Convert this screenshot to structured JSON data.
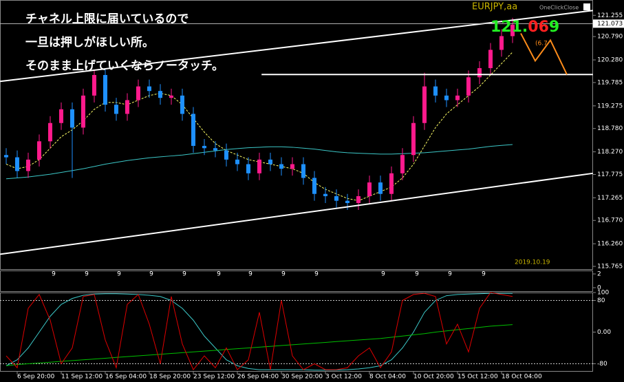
{
  "chart_data": [
    {
      "type": "candlestick",
      "title": "EURJPY,aa",
      "button": "OneClickClose",
      "date_label": "2019.10.19",
      "annotations": [
        "チャネル上限に届いているので",
        "一旦は押しがほしい所。",
        "そのまま上げていくならノータッチ。"
      ],
      "price_display": [
        {
          "text": "121.",
          "color": "#22ee22"
        },
        {
          "text": "06",
          "color": "#ff2020"
        },
        {
          "text": "9",
          "color": "#22ee22"
        }
      ],
      "projection_label": "(6.7",
      "categories": [
        null,
        "6 Sep 20:00",
        null,
        null,
        null,
        "11 Sep 12:00",
        null,
        null,
        null,
        "16 Sep 04:00",
        null,
        null,
        null,
        "18 Sep 20:00",
        null,
        null,
        null,
        "23 Sep 12:00",
        null,
        null,
        null,
        "26 Sep 04:00",
        null,
        null,
        null,
        "30 Sep 20:00",
        null,
        null,
        null,
        "3 Oct 12:00",
        null,
        null,
        null,
        "8 Oct 04:00",
        null,
        null,
        null,
        "10 Oct 20:00",
        null,
        null,
        null,
        "15 Oct 12:00",
        null,
        null,
        null,
        "18 Oct 04:00",
        null
      ],
      "open": [
        118.2,
        118.15,
        117.85,
        118.1,
        118.5,
        118.9,
        119.2,
        118.8,
        119.5,
        119.95,
        119.3,
        119.1,
        119.4,
        119.7,
        119.6,
        119.45,
        119.5,
        119.1,
        118.4,
        118.35,
        118.3,
        118.1,
        118.0,
        117.8,
        118.1,
        118.0,
        117.9,
        118.0,
        117.7,
        117.35,
        117.3,
        117.2,
        117.15,
        117.3,
        117.6,
        117.35,
        117.8,
        118.2,
        118.9,
        119.7,
        119.5,
        119.4,
        119.5,
        119.9,
        120.1,
        120.5,
        120.8
      ],
      "high": [
        118.35,
        118.3,
        118.25,
        118.65,
        119.05,
        119.35,
        119.35,
        119.65,
        120.05,
        120.1,
        119.45,
        119.55,
        119.85,
        119.85,
        119.75,
        119.65,
        119.65,
        119.25,
        118.55,
        118.5,
        118.45,
        118.25,
        118.15,
        118.25,
        118.25,
        118.15,
        118.15,
        118.15,
        117.85,
        117.5,
        117.45,
        117.35,
        117.45,
        117.75,
        117.75,
        117.95,
        118.35,
        119.05,
        120.0,
        119.85,
        119.65,
        119.65,
        120.05,
        120.25,
        120.65,
        120.95,
        121.2
      ],
      "low": [
        118.0,
        117.7,
        117.7,
        117.95,
        118.35,
        118.75,
        117.7,
        118.65,
        119.35,
        119.15,
        118.95,
        118.95,
        119.25,
        119.45,
        119.3,
        119.3,
        118.95,
        118.25,
        118.2,
        118.15,
        117.95,
        117.85,
        117.65,
        117.65,
        117.85,
        117.75,
        117.75,
        117.55,
        117.2,
        117.15,
        117.05,
        117.0,
        117.0,
        117.15,
        117.2,
        117.2,
        117.65,
        118.05,
        118.75,
        119.35,
        119.25,
        119.25,
        119.35,
        119.75,
        119.95,
        120.35,
        120.65
      ],
      "close": [
        118.15,
        117.85,
        118.1,
        118.5,
        118.9,
        119.2,
        118.8,
        119.5,
        119.95,
        119.3,
        119.1,
        119.4,
        119.7,
        119.6,
        119.45,
        119.5,
        119.1,
        118.4,
        118.35,
        118.3,
        118.1,
        118.0,
        117.8,
        118.1,
        118.0,
        117.9,
        118.0,
        117.7,
        117.35,
        117.3,
        117.2,
        117.15,
        117.3,
        117.6,
        117.35,
        117.8,
        118.2,
        118.9,
        119.7,
        119.5,
        119.4,
        119.5,
        119.9,
        120.1,
        120.5,
        120.8,
        121.05
      ],
      "up_color": "#ff1a8c",
      "down_color": "#1e90ff",
      "series": [
        {
          "color": "#ffff66",
          "dashed": true,
          "values": [
            118.0,
            117.9,
            117.95,
            118.1,
            118.35,
            118.6,
            118.75,
            118.95,
            119.2,
            119.35,
            119.35,
            119.3,
            119.4,
            119.5,
            119.55,
            119.5,
            119.3,
            119.0,
            118.7,
            118.45,
            118.3,
            118.2,
            118.1,
            118.05,
            118.0,
            117.95,
            117.9,
            117.8,
            117.6,
            117.45,
            117.35,
            117.25,
            117.2,
            117.3,
            117.4,
            117.5,
            117.7,
            118.0,
            118.4,
            118.8,
            119.1,
            119.3,
            119.5,
            119.7,
            119.95,
            120.2,
            120.45
          ]
        },
        {
          "color": "#3cc8c8",
          "dashed": false,
          "values": [
            117.68,
            117.7,
            117.72,
            117.75,
            117.78,
            117.82,
            117.86,
            117.9,
            117.95,
            118.0,
            118.04,
            118.08,
            118.11,
            118.14,
            118.16,
            118.18,
            118.2,
            118.23,
            118.26,
            118.29,
            118.32,
            118.34,
            118.36,
            118.37,
            118.38,
            118.38,
            118.37,
            118.35,
            118.33,
            118.3,
            118.27,
            118.25,
            118.24,
            118.23,
            118.22,
            118.22,
            118.23,
            118.24,
            118.25,
            118.27,
            118.29,
            118.31,
            118.33,
            118.36,
            118.39,
            118.41,
            118.43
          ]
        }
      ],
      "trendlines": [
        {
          "color": "#ffffff",
          "points": [
            [
              -0.56,
              116.03
            ],
            [
              53.3,
              117.8
            ]
          ]
        },
        {
          "color": "#ffffff",
          "points": [
            [
              -0.56,
              119.81
            ],
            [
              53.3,
              121.36
            ]
          ]
        },
        {
          "color": "#ffffff",
          "points": [
            [
              23.2,
              119.96
            ],
            [
              53.3,
              119.96
            ]
          ]
        },
        {
          "color": "#ff8c1a",
          "points": [
            [
              46.75,
              120.86
            ],
            [
              48.06,
              120.26
            ],
            [
              49.44,
              120.71
            ],
            [
              50.94,
              119.96
            ]
          ]
        }
      ],
      "current_price": 121.073,
      "ylim": [
        115.69,
        121.59
      ],
      "yticks": [
        121.255,
        {
          "value": 120.79,
          "label": "120.790"
        },
        {
          "value": 120.28,
          "label": "120.280"
        },
        119.785,
        119.275,
        {
          "value": 118.78,
          "label": "118.780"
        },
        {
          "value": 118.27,
          "label": "118.270"
        },
        117.775,
        117.265,
        {
          "value": 116.77,
          "label": "116.770"
        },
        {
          "value": 116.26,
          "label": "116.260"
        },
        115.765
      ],
      "grid": false
    },
    {
      "type": "marker",
      "labels": [
        "9",
        "9",
        "9",
        "9",
        "9",
        "9",
        "9",
        "9",
        "9",
        "9",
        "9",
        "9",
        "9"
      ],
      "ylim": [
        -0.5,
        2.5
      ],
      "yticks": [
        2,
        0
      ]
    },
    {
      "type": "line",
      "series": [
        {
          "color": "#3cc8c8",
          "values": [
            -85,
            -70,
            -40,
            0,
            40,
            70,
            85,
            93,
            96,
            97,
            97,
            96,
            95,
            93,
            90,
            80,
            60,
            30,
            -10,
            -40,
            -70,
            -85,
            -92,
            -95,
            -95,
            -95,
            -95,
            -95,
            -96,
            -96,
            -96,
            -95,
            -93,
            -90,
            -85,
            -70,
            -40,
            0,
            50,
            80,
            92,
            95,
            96,
            97,
            98,
            98,
            98
          ]
        },
        {
          "color": "#00c000",
          "values": [
            -85,
            -82,
            -80,
            -78,
            -76,
            -74,
            -72,
            -70,
            -68,
            -66,
            -64,
            -62,
            -60,
            -58,
            -56,
            -54,
            -52,
            -50,
            -48,
            -46,
            -44,
            -42,
            -40,
            -38,
            -36,
            -34,
            -32,
            -30,
            -28,
            -26,
            -24,
            -22,
            -20,
            -18,
            -16,
            -13,
            -10,
            -7,
            -4,
            0,
            3,
            6,
            9,
            12,
            15,
            17,
            19
          ]
        },
        {
          "color": "#e00000",
          "values": [
            -60,
            -90,
            60,
            95,
            30,
            -80,
            -40,
            90,
            95,
            -20,
            -90,
            70,
            95,
            20,
            -80,
            90,
            -30,
            -95,
            -60,
            -90,
            -40,
            -95,
            -70,
            50,
            -95,
            80,
            -60,
            -95,
            -80,
            -95,
            -95,
            -90,
            -60,
            -40,
            -90,
            -50,
            80,
            95,
            98,
            90,
            -30,
            20,
            -50,
            60,
            100,
            95,
            90
          ]
        }
      ],
      "ylim": [
        -100,
        100
      ],
      "yticks": [
        100,
        80,
        {
          "value": 0,
          "label": "0.00"
        },
        -80
      ],
      "dotted_levels": [
        80,
        -80
      ]
    }
  ]
}
